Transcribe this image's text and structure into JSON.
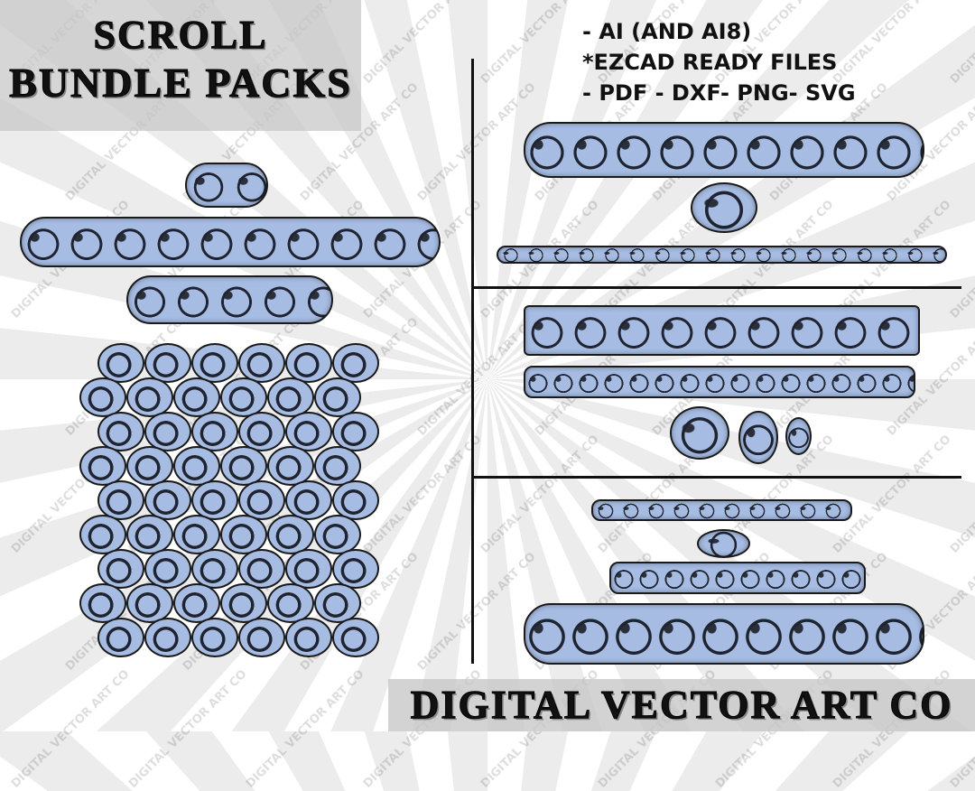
{
  "title": {
    "line1": "SCROLL",
    "line2": "BUNDLE PACKS"
  },
  "features": [
    "- AI (AND AI8)",
    "*EZCAD READY FILES",
    "- PDF - DXF- PNG- SVG"
  ],
  "brand": "DIGITAL VECTOR ART CO",
  "watermark": "DIGITAL VECTOR ART CO",
  "colors": {
    "scroll_fill": "#a6bce3",
    "outline": "#1a1a1a",
    "banner": "#c8c8c8"
  }
}
